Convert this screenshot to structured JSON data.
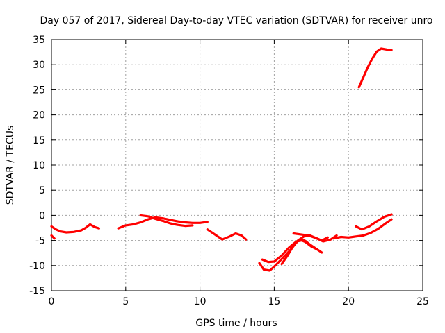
{
  "chart_data": {
    "type": "line",
    "title": "Day 057 of 2017, Sidereal Day-to-day VTEC variation (SDTVAR) for receiver unro",
    "xlabel": "GPS time / hours",
    "ylabel": "SDTVAR / TECUs",
    "xlim": [
      0,
      25
    ],
    "ylim": [
      -15,
      35
    ],
    "xticks": [
      "0",
      "5",
      "10",
      "15",
      "20",
      "25"
    ],
    "yticks": [
      "-15",
      "-10",
      "-5",
      "0",
      "5",
      "10",
      "15",
      "20",
      "25",
      "30",
      "35"
    ],
    "grid": true,
    "color": "#ff0000",
    "series": [
      {
        "x": [
          0.0,
          0.3,
          0.6,
          1.0,
          1.5,
          2.0,
          2.3,
          2.6,
          2.9,
          3.2
        ],
        "y": [
          -2.2,
          -2.8,
          -3.2,
          -3.4,
          -3.3,
          -3.0,
          -2.5,
          -1.8,
          -2.3,
          -2.6
        ]
      },
      {
        "x": [
          0.0,
          0.2
        ],
        "y": [
          -4.0,
          -4.6
        ]
      },
      {
        "x": [
          4.5,
          5.0,
          5.5,
          6.0,
          6.5,
          7.0,
          7.5,
          8.0,
          8.5,
          9.0,
          9.5,
          10.0,
          10.5
        ],
        "y": [
          -2.6,
          -2.0,
          -1.8,
          -1.4,
          -0.8,
          -0.4,
          -0.6,
          -0.9,
          -1.2,
          -1.4,
          -1.5,
          -1.5,
          -1.3
        ]
      },
      {
        "x": [
          6.0,
          6.5,
          7.0,
          7.5,
          8.0,
          8.5,
          9.0,
          9.5
        ],
        "y": [
          0.0,
          -0.2,
          -0.7,
          -1.1,
          -1.6,
          -1.9,
          -2.1,
          -2.0
        ]
      },
      {
        "x": [
          10.5,
          11.0,
          11.5,
          12.0,
          12.4,
          12.8,
          13.1
        ],
        "y": [
          -2.8,
          -3.8,
          -4.8,
          -4.2,
          -3.6,
          -4.0,
          -4.8
        ]
      },
      {
        "x": [
          14.0,
          14.3,
          14.7,
          15.0,
          15.4,
          15.8,
          16.2,
          16.6,
          17.0,
          17.4,
          17.8,
          18.3,
          18.8,
          19.2
        ],
        "y": [
          -9.5,
          -10.8,
          -11.0,
          -10.2,
          -9.0,
          -7.8,
          -6.5,
          -5.0,
          -4.2,
          -4.0,
          -4.5,
          -5.2,
          -4.8,
          -4.0
        ]
      },
      {
        "x": [
          14.2,
          14.6,
          15.0,
          15.5,
          16.0,
          16.5,
          17.0,
          17.4,
          17.8,
          18.2
        ],
        "y": [
          -8.8,
          -9.3,
          -9.2,
          -8.0,
          -6.4,
          -5.2,
          -4.9,
          -5.8,
          -6.6,
          -7.4
        ]
      },
      {
        "x": [
          15.5,
          15.9,
          16.3,
          16.7,
          17.1,
          17.5,
          17.9
        ],
        "y": [
          -9.7,
          -8.0,
          -6.0,
          -4.8,
          -5.3,
          -6.2,
          -6.8
        ]
      },
      {
        "x": [
          16.3,
          16.8,
          17.3,
          17.8,
          18.2,
          18.6
        ],
        "y": [
          -3.6,
          -3.8,
          -4.0,
          -4.5,
          -5.0,
          -4.4
        ]
      },
      {
        "x": [
          19.0,
          19.5,
          20.0,
          20.5,
          21.0,
          21.5,
          22.0,
          22.5,
          22.9
        ],
        "y": [
          -4.6,
          -4.3,
          -4.4,
          -4.2,
          -4.0,
          -3.5,
          -2.7,
          -1.6,
          -0.8
        ]
      },
      {
        "x": [
          20.5,
          20.9,
          21.4,
          21.9,
          22.4,
          22.9
        ],
        "y": [
          -2.2,
          -2.8,
          -2.2,
          -1.2,
          -0.3,
          0.2
        ]
      },
      {
        "x": [
          20.7,
          21.0,
          21.3,
          21.6,
          21.9,
          22.2,
          22.6,
          22.9
        ],
        "y": [
          25.5,
          27.5,
          29.5,
          31.2,
          32.6,
          33.2,
          33.0,
          32.9
        ]
      }
    ]
  }
}
